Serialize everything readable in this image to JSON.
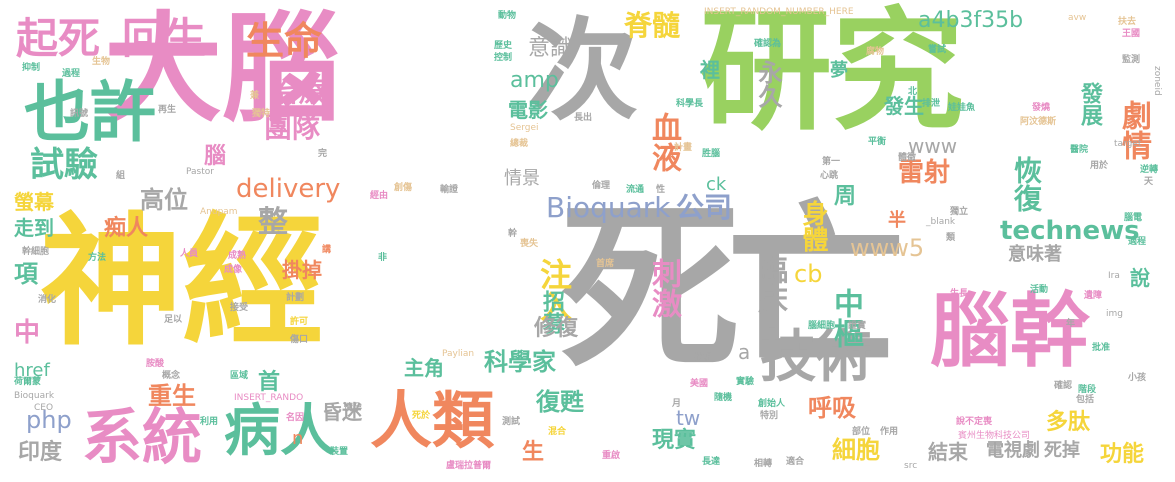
{
  "palette": {
    "pink": "#e88cc4",
    "green": "#99d160",
    "gray": "#a7a7a7",
    "yellow": "#f5d53b",
    "teal": "#5bbf9c",
    "orange": "#f0875e",
    "blue": "#8ea0cb",
    "tan": "#e5c494"
  },
  "words": [
    {
      "text": "大腦",
      "color": "pink"
    },
    {
      "text": "次",
      "color": "gray"
    },
    {
      "text": "研究",
      "color": "green"
    },
    {
      "text": "神經",
      "color": "yellow"
    },
    {
      "text": "死亡",
      "color": "gray"
    },
    {
      "text": "腦幹",
      "color": "pink"
    },
    {
      "text": "也許",
      "color": "teal"
    },
    {
      "text": "起死",
      "color": "pink"
    },
    {
      "text": "回生",
      "color": "pink"
    },
    {
      "text": "生命",
      "color": "orange"
    },
    {
      "text": "試驗",
      "color": "teal"
    },
    {
      "text": "治療",
      "color": "pink"
    },
    {
      "text": "團隊",
      "color": "pink"
    },
    {
      "text": "技術",
      "color": "gray"
    },
    {
      "text": "系統",
      "color": "pink"
    },
    {
      "text": "病人",
      "color": "teal"
    },
    {
      "text": "人類",
      "color": "orange"
    },
    {
      "text": "Bioquark",
      "color": "blue"
    },
    {
      "text": "公司",
      "color": "blue"
    },
    {
      "text": "脊髓",
      "color": "yellow"
    },
    {
      "text": "意識",
      "color": "gray"
    },
    {
      "text": "a4b3f35b",
      "color": "teal"
    },
    {
      "text": "劇情",
      "color": "orange"
    },
    {
      "text": "發展",
      "color": "teal"
    },
    {
      "text": "雷射",
      "color": "orange"
    },
    {
      "text": "恢復",
      "color": "teal"
    },
    {
      "text": "technews",
      "color": "teal"
    },
    {
      "text": "血液",
      "color": "orange"
    },
    {
      "text": "永久",
      "color": "gray"
    },
    {
      "text": "delivery",
      "color": "orange"
    },
    {
      "text": "高位",
      "color": "gray"
    },
    {
      "text": "注入",
      "color": "yellow"
    },
    {
      "text": "刺激",
      "color": "pink"
    },
    {
      "text": "臨床",
      "color": "gray"
    },
    {
      "text": "中樞",
      "color": "teal"
    },
    {
      "text": "身體",
      "color": "yellow"
    },
    {
      "text": "www5",
      "color": "tan"
    },
    {
      "text": "招募",
      "color": "teal"
    },
    {
      "text": "修復",
      "color": "gray"
    },
    {
      "text": "科學家",
      "color": "teal"
    },
    {
      "text": "復甦",
      "color": "teal"
    },
    {
      "text": "呼吸",
      "color": "orange"
    },
    {
      "text": "現實",
      "color": "teal"
    },
    {
      "text": "細胞",
      "color": "yellow"
    },
    {
      "text": "多肽",
      "color": "yellow"
    },
    {
      "text": "功能",
      "color": "yellow"
    },
    {
      "text": "結束",
      "color": "gray"
    },
    {
      "text": "電視劇",
      "color": "gray"
    },
    {
      "text": "死掉",
      "color": "gray"
    },
    {
      "text": "意味著",
      "color": "gray"
    },
    {
      "text": "重生",
      "color": "orange"
    },
    {
      "text": "昏迷",
      "color": "gray"
    },
    {
      "text": "首",
      "color": "teal"
    },
    {
      "text": "印度",
      "color": "gray"
    },
    {
      "text": "主角",
      "color": "teal"
    },
    {
      "text": "螢幕",
      "color": "yellow"
    },
    {
      "text": "走到",
      "color": "teal"
    },
    {
      "text": "痴人",
      "color": "orange"
    },
    {
      "text": "整",
      "color": "gray"
    },
    {
      "text": "掛掉",
      "color": "orange"
    },
    {
      "text": "中",
      "color": "pink"
    },
    {
      "text": "項",
      "color": "teal"
    },
    {
      "text": "href",
      "color": "teal"
    },
    {
      "text": "php",
      "color": "blue"
    },
    {
      "text": "amp",
      "color": "teal"
    },
    {
      "text": "電影",
      "color": "teal"
    },
    {
      "text": "腦",
      "color": "pink"
    },
    {
      "text": "周",
      "color": "teal"
    },
    {
      "text": "生",
      "color": "orange"
    },
    {
      "text": "tw",
      "color": "blue"
    },
    {
      "text": "cb",
      "color": "yellow"
    },
    {
      "text": "a",
      "color": "gray"
    },
    {
      "text": "n",
      "color": "orange"
    },
    {
      "text": "說",
      "color": "teal"
    },
    {
      "text": "www",
      "color": "gray"
    },
    {
      "text": "夢",
      "color": "teal"
    },
    {
      "text": "發生",
      "color": "teal"
    },
    {
      "text": "裡",
      "color": "teal"
    },
    {
      "text": "情景",
      "color": "gray"
    },
    {
      "text": "ck",
      "color": "teal"
    },
    {
      "text": "半",
      "color": "orange"
    },
    {
      "text": "INSERT_RANDOM_NUMBER_HERE",
      "color": "tan"
    },
    {
      "text": "INSERT_RANDO",
      "color": "pink"
    },
    {
      "text": "Paylian",
      "color": "tan"
    },
    {
      "text": "Pastor",
      "color": "gray"
    },
    {
      "text": "Anupam",
      "color": "tan"
    },
    {
      "text": "Sergei",
      "color": "tan"
    },
    {
      "text": "zoneid",
      "color": "gray"
    },
    {
      "text": "target",
      "color": "gray"
    },
    {
      "text": "_blank",
      "color": "gray"
    },
    {
      "text": "img",
      "color": "gray"
    },
    {
      "text": "src",
      "color": "gray"
    },
    {
      "text": "Bioquark",
      "color": "gray"
    },
    {
      "text": "CEO",
      "color": "gray"
    },
    {
      "text": "avw",
      "color": "tan"
    },
    {
      "text": "Ira",
      "color": "gray"
    },
    {
      "text": "賓州生物科技公司",
      "color": "pink"
    },
    {
      "text": "抑制",
      "color": "teal"
    },
    {
      "text": "過程",
      "color": "teal"
    },
    {
      "text": "生物",
      "color": "tan"
    },
    {
      "text": "動物",
      "color": "teal"
    },
    {
      "text": "歷史",
      "color": "teal"
    },
    {
      "text": "控制",
      "color": "teal"
    },
    {
      "text": "確認為",
      "color": "teal"
    },
    {
      "text": "腐物",
      "color": "tan"
    },
    {
      "text": "嘗試",
      "color": "teal"
    },
    {
      "text": "扶去",
      "color": "tan"
    },
    {
      "text": "王國",
      "color": "pink"
    },
    {
      "text": "監測",
      "color": "gray"
    },
    {
      "text": "科學長",
      "color": "teal"
    },
    {
      "text": "長出",
      "color": "gray"
    },
    {
      "text": "再生",
      "color": "gray"
    },
    {
      "text": "訊號",
      "color": "gray"
    },
    {
      "text": "獨特",
      "color": "tan"
    },
    {
      "text": "兼",
      "color": "tan"
    },
    {
      "text": "計畫",
      "color": "tan"
    },
    {
      "text": "胜腦",
      "color": "teal"
    },
    {
      "text": "完",
      "color": "gray"
    },
    {
      "text": "總裁",
      "color": "tan"
    },
    {
      "text": "第一",
      "color": "gray"
    },
    {
      "text": "心跳",
      "color": "gray"
    },
    {
      "text": "平衡",
      "color": "teal"
    },
    {
      "text": "體徵",
      "color": "gray"
    },
    {
      "text": "醫院",
      "color": "teal"
    },
    {
      "text": "用於",
      "color": "gray"
    },
    {
      "text": "逆轉",
      "color": "teal"
    },
    {
      "text": "天",
      "color": "gray"
    },
    {
      "text": "腦電",
      "color": "teal"
    },
    {
      "text": "適程",
      "color": "teal"
    },
    {
      "text": "北",
      "color": "teal"
    },
    {
      "text": "排泄",
      "color": "teal"
    },
    {
      "text": "娃娃魚",
      "color": "teal"
    },
    {
      "text": "發燒",
      "color": "pink"
    },
    {
      "text": "阿汶德斯",
      "color": "tan"
    },
    {
      "text": "經由",
      "color": "pink"
    },
    {
      "text": "創傷",
      "color": "tan"
    },
    {
      "text": "輸證",
      "color": "gray"
    },
    {
      "text": "倫理",
      "color": "gray"
    },
    {
      "text": "流通",
      "color": "teal"
    },
    {
      "text": "性",
      "color": "gray"
    },
    {
      "text": "獨立",
      "color": "gray"
    },
    {
      "text": "幹細胞",
      "color": "gray"
    },
    {
      "text": "人員",
      "color": "pink"
    },
    {
      "text": "成熟",
      "color": "pink"
    },
    {
      "text": "講",
      "color": "orange"
    },
    {
      "text": "成像",
      "color": "pink"
    },
    {
      "text": "非",
      "color": "teal"
    },
    {
      "text": "首席",
      "color": "tan"
    },
    {
      "text": "喪失",
      "color": "tan"
    },
    {
      "text": "方法",
      "color": "teal"
    },
    {
      "text": "類",
      "color": "gray"
    },
    {
      "text": "消化",
      "color": "gray"
    },
    {
      "text": "接受",
      "color": "gray"
    },
    {
      "text": "計劃",
      "color": "gray"
    },
    {
      "text": "足以",
      "color": "gray"
    },
    {
      "text": "許可",
      "color": "yellow"
    },
    {
      "text": "傷口",
      "color": "gray"
    },
    {
      "text": "活動",
      "color": "teal"
    },
    {
      "text": "遺障",
      "color": "pink"
    },
    {
      "text": "生長",
      "color": "pink"
    },
    {
      "text": "腦細胞",
      "color": "teal"
    },
    {
      "text": "證實",
      "color": "gray"
    },
    {
      "text": "年",
      "color": "gray"
    },
    {
      "text": "批准",
      "color": "teal"
    },
    {
      "text": "胺酸",
      "color": "pink"
    },
    {
      "text": "概念",
      "color": "gray"
    },
    {
      "text": "區域",
      "color": "teal"
    },
    {
      "text": "荷爾蒙",
      "color": "teal"
    },
    {
      "text": "狀況",
      "color": "gray"
    },
    {
      "text": "實驗",
      "color": "teal"
    },
    {
      "text": "美國",
      "color": "pink"
    },
    {
      "text": "隨機",
      "color": "teal"
    },
    {
      "text": "創始人",
      "color": "teal"
    },
    {
      "text": "確認",
      "color": "gray"
    },
    {
      "text": "階段",
      "color": "teal"
    },
    {
      "text": "小孩",
      "color": "gray"
    },
    {
      "text": "包括",
      "color": "gray"
    },
    {
      "text": "利用",
      "color": "teal"
    },
    {
      "text": "名因",
      "color": "pink"
    },
    {
      "text": "情孕",
      "color": "gray"
    },
    {
      "text": "死於",
      "color": "yellow"
    },
    {
      "text": "說不定喪",
      "color": "pink"
    },
    {
      "text": "裝置",
      "color": "teal"
    },
    {
      "text": "測試",
      "color": "gray"
    },
    {
      "text": "混合",
      "color": "yellow"
    },
    {
      "text": "月",
      "color": "gray"
    },
    {
      "text": "特別",
      "color": "gray"
    },
    {
      "text": "部位",
      "color": "gray"
    },
    {
      "text": "作用",
      "color": "gray"
    },
    {
      "text": "重啟",
      "color": "pink"
    },
    {
      "text": "盧瑞拉普爾",
      "color": "pink"
    },
    {
      "text": "長達",
      "color": "teal"
    },
    {
      "text": "相轉",
      "color": "gray"
    },
    {
      "text": "適合",
      "color": "gray"
    },
    {
      "text": "幹",
      "color": "gray"
    },
    {
      "text": "組",
      "color": "gray"
    }
  ]
}
